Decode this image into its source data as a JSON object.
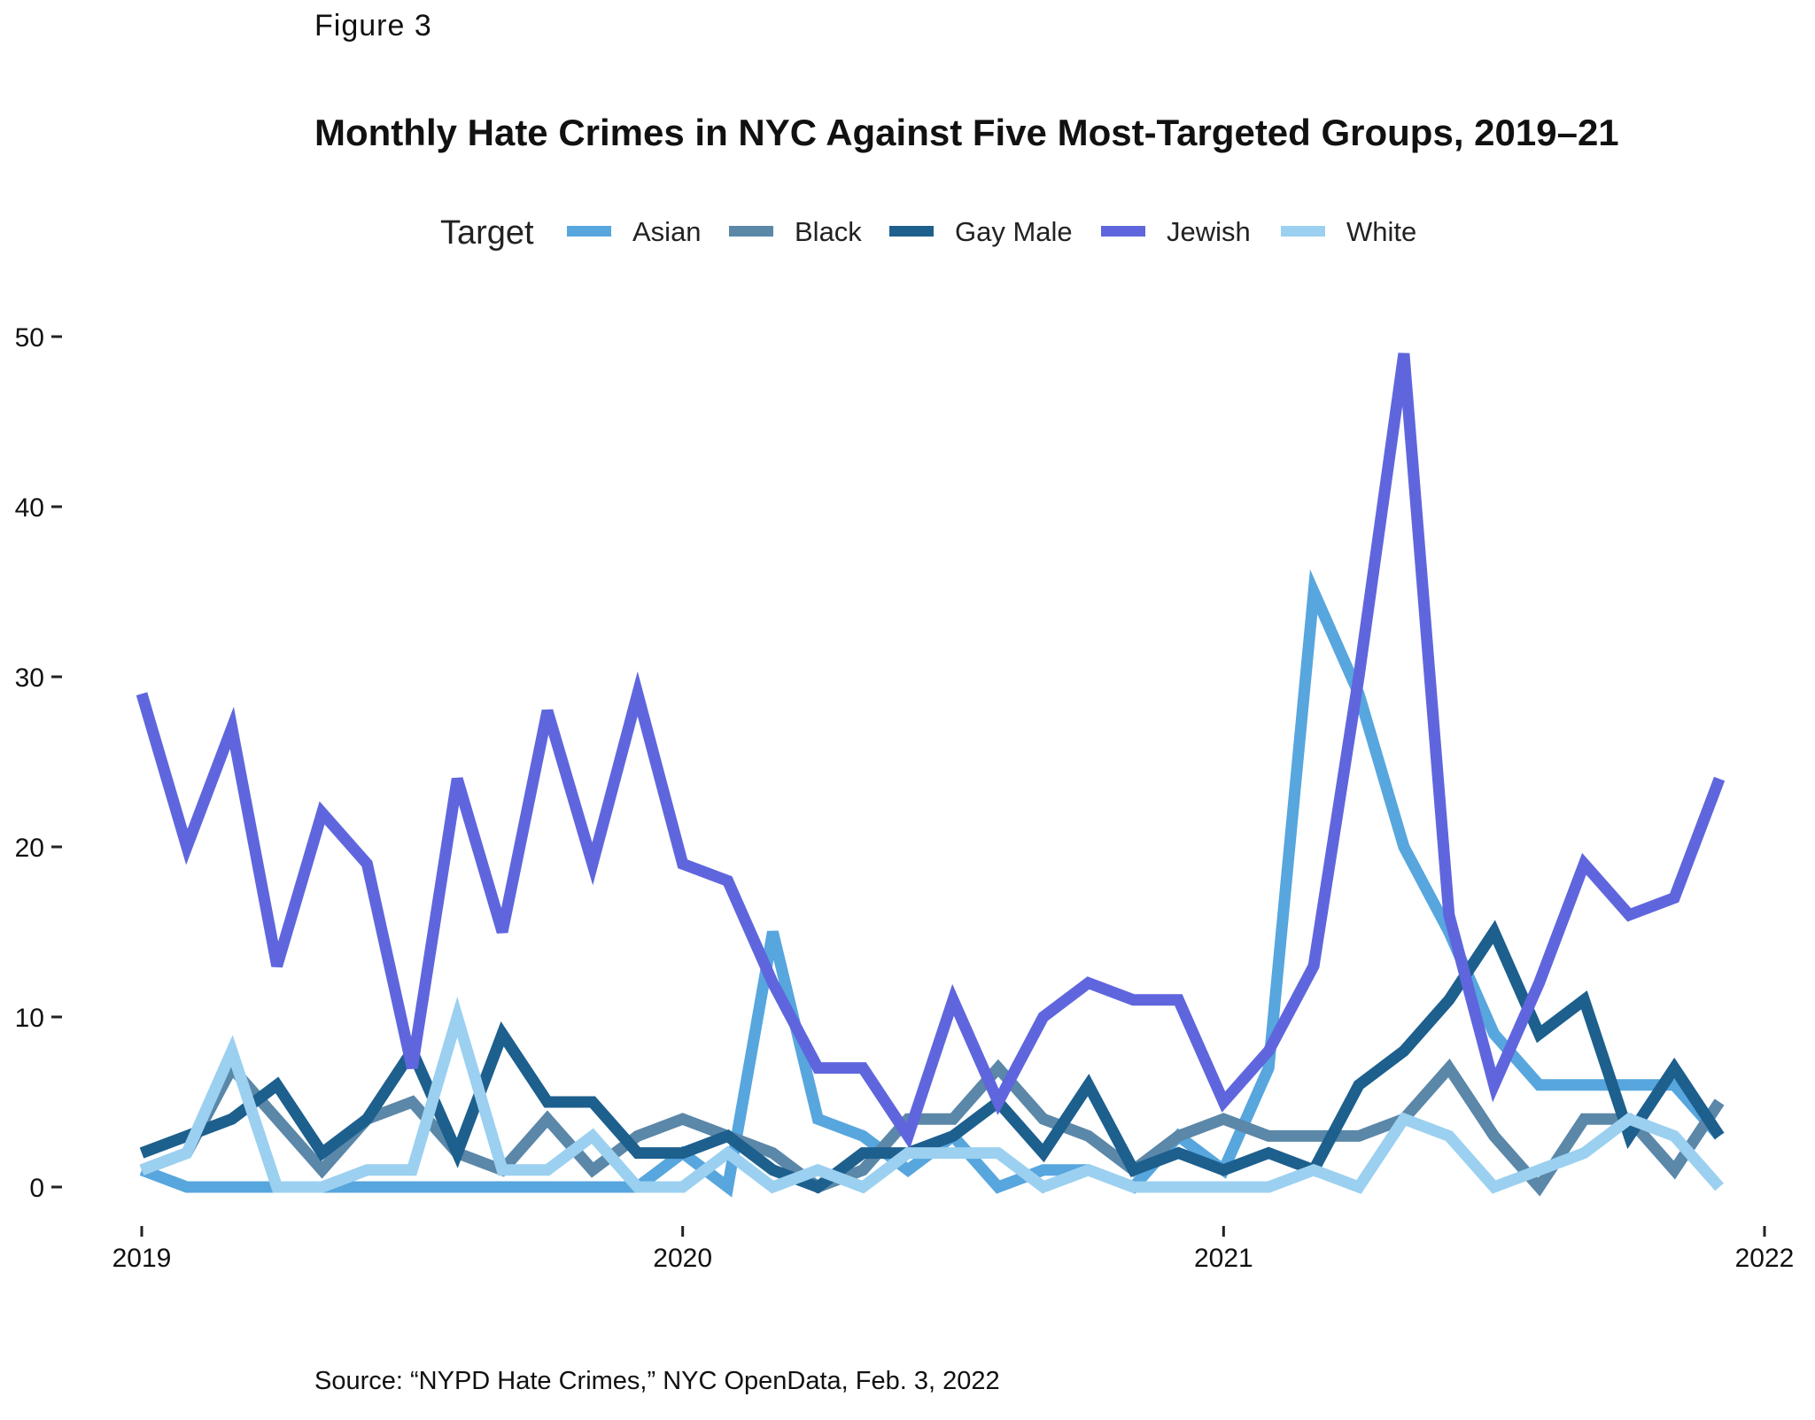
{
  "figure_label": "Figure 3",
  "source": "Source: “NYPD Hate Crimes,” NYC OpenData, Feb. 3, 2022",
  "chart_data": {
    "type": "line",
    "title": "Monthly Hate Crimes in NYC Against Five Most-Targeted Groups, 2019–21",
    "xlabel": "",
    "ylabel": "",
    "legend_title": "Target",
    "legend_position": "top",
    "grid": false,
    "x_ticks": [
      "2019",
      "2020",
      "2021",
      "2022"
    ],
    "y_ticks": [
      0,
      10,
      20,
      30,
      40,
      50
    ],
    "ylim": [
      0,
      50
    ],
    "x": [
      "2019-01",
      "2019-02",
      "2019-03",
      "2019-04",
      "2019-05",
      "2019-06",
      "2019-07",
      "2019-08",
      "2019-09",
      "2019-10",
      "2019-11",
      "2019-12",
      "2020-01",
      "2020-02",
      "2020-03",
      "2020-04",
      "2020-05",
      "2020-06",
      "2020-07",
      "2020-08",
      "2020-09",
      "2020-10",
      "2020-11",
      "2020-12",
      "2021-01",
      "2021-02",
      "2021-03",
      "2021-04",
      "2021-05",
      "2021-06",
      "2021-07",
      "2021-08",
      "2021-09",
      "2021-10",
      "2021-11",
      "2021-12"
    ],
    "series": [
      {
        "name": "Asian",
        "color": "#57a6de",
        "values": [
          1,
          0,
          0,
          0,
          0,
          0,
          0,
          0,
          0,
          0,
          0,
          0,
          2,
          0,
          15,
          4,
          3,
          1,
          3,
          0,
          1,
          1,
          0,
          3,
          1,
          7,
          35,
          29,
          20,
          15,
          9,
          6,
          6,
          6,
          6,
          3
        ]
      },
      {
        "name": "Black",
        "color": "#5b87a8",
        "values": [
          1,
          2,
          7,
          4,
          1,
          4,
          5,
          2,
          1,
          4,
          1,
          3,
          4,
          3,
          2,
          0,
          1,
          4,
          4,
          7,
          4,
          3,
          1,
          3,
          4,
          3,
          3,
          3,
          4,
          7,
          3,
          0,
          4,
          4,
          1,
          5
        ]
      },
      {
        "name": "Gay Male",
        "color": "#1d5f8d",
        "values": [
          2,
          3,
          4,
          6,
          2,
          4,
          8,
          2,
          9,
          5,
          5,
          2,
          2,
          3,
          1,
          0,
          2,
          2,
          3,
          5,
          2,
          6,
          1,
          2,
          1,
          2,
          1,
          6,
          8,
          11,
          15,
          9,
          11,
          3,
          7,
          3
        ]
      },
      {
        "name": "Jewish",
        "color": "#5f66dd",
        "values": [
          29,
          20,
          27,
          13,
          22,
          19,
          7,
          24,
          15,
          28,
          19,
          29,
          19,
          18,
          12,
          7,
          7,
          3,
          11,
          5,
          10,
          12,
          11,
          11,
          5,
          8,
          13,
          30,
          49,
          16,
          6,
          12,
          19,
          16,
          17,
          24
        ]
      },
      {
        "name": "White",
        "color": "#9bd0f0",
        "values": [
          1,
          2,
          8,
          0,
          0,
          1,
          1,
          10,
          1,
          1,
          3,
          0,
          0,
          2,
          0,
          1,
          0,
          2,
          2,
          2,
          0,
          1,
          0,
          0,
          0,
          0,
          1,
          0,
          4,
          3,
          0,
          1,
          2,
          4,
          3,
          0
        ]
      }
    ]
  }
}
